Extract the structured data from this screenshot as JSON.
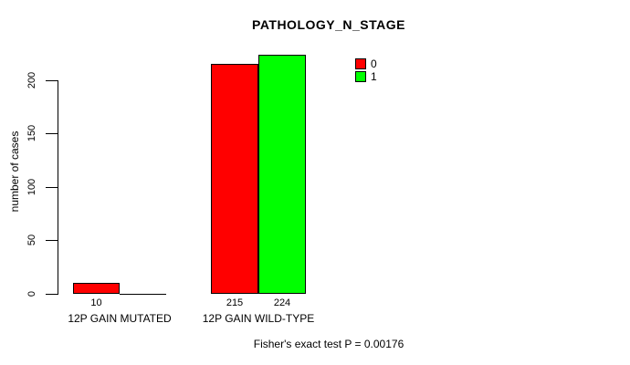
{
  "chart_data": {
    "type": "bar",
    "title": "PATHOLOGY_N_STAGE",
    "ylabel": "number of cases",
    "xlabel": "",
    "categories": [
      "12P GAIN MUTATED",
      "12P GAIN WILD-TYPE"
    ],
    "series": [
      {
        "name": "0",
        "color": "#ff0000",
        "values": [
          10,
          215
        ]
      },
      {
        "name": "1",
        "color": "#00ff00",
        "values": [
          0,
          224
        ]
      }
    ],
    "value_labels": [
      [
        "10",
        ""
      ],
      [
        "215",
        "224"
      ]
    ],
    "yticks": [
      0,
      50,
      100,
      150,
      200
    ],
    "ylim": [
      0,
      235
    ],
    "grid": false,
    "legend": {
      "position": "top-right",
      "entries": [
        {
          "label": "0",
          "color": "#ff0000"
        },
        {
          "label": "1",
          "color": "#00ff00"
        }
      ]
    },
    "annotation": "Fisher's exact test P = 0.00176",
    "bar_border_color": "#000000",
    "background": "#ffffff"
  }
}
